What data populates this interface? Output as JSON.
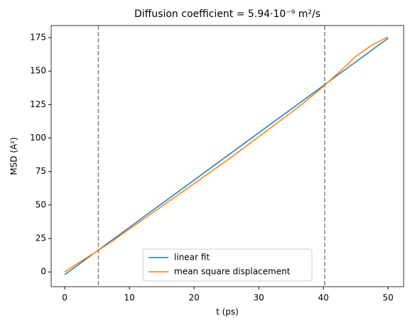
{
  "chart_data": {
    "type": "line",
    "title": "Diffusion coefficient = 5.94·10⁻⁹ m²/s",
    "x_label": "t (ps)",
    "y_label": "MSD (A²)",
    "series": [
      {
        "name": "linear fit",
        "color": "#1f77b4",
        "x": [
          0,
          50
        ],
        "values": [
          -2,
          174.5
        ]
      },
      {
        "name": "mean square displacement",
        "color": "#ff7f0e",
        "x": [
          0,
          2.5,
          5,
          7.5,
          10,
          12.5,
          15,
          17.5,
          20,
          22.5,
          25,
          27.5,
          30,
          32.5,
          35,
          37.5,
          40,
          42.5,
          45,
          47.5,
          50
        ],
        "values": [
          0,
          8,
          15.5,
          23.5,
          32,
          40.5,
          49,
          57.5,
          66,
          74.5,
          83,
          92,
          101,
          110,
          119,
          128.5,
          138.5,
          149.5,
          161,
          169.5,
          175.5
        ]
      }
    ],
    "vlines": [
      5.2,
      40.2
    ],
    "vline_color": "#808080",
    "xlim": [
      -2.1,
      52.4
    ],
    "xticks": [
      0,
      10,
      20,
      30,
      40,
      50
    ],
    "ylim": [
      -11,
      184
    ],
    "yticks": [
      0,
      25,
      50,
      75,
      100,
      125,
      150,
      175
    ],
    "grid": false,
    "legend": "lower center"
  }
}
